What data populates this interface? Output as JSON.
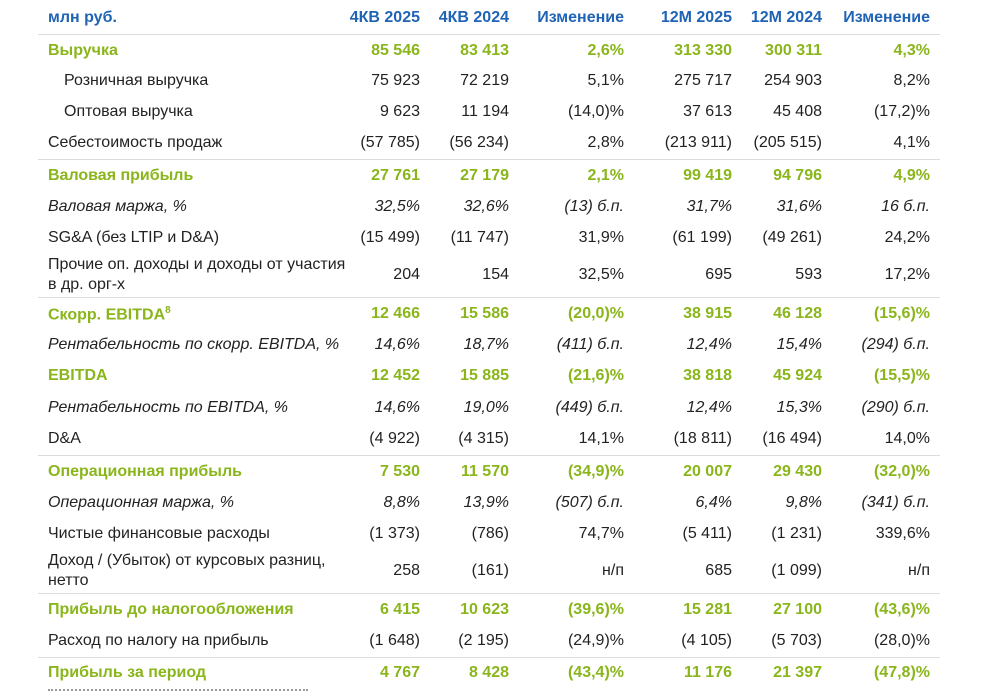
{
  "header": {
    "label": "млн руб.",
    "cols": [
      "4КВ 2025",
      "4КВ 2024",
      "Изменение",
      "12М 2025",
      "12М 2024",
      "Изменение"
    ]
  },
  "rows": [
    {
      "label": "Выручка",
      "v": [
        "85 546",
        "83 413",
        "2,6%",
        "313 330",
        "300 311",
        "4,3%"
      ]
    },
    {
      "label": "Розничная выручка",
      "v": [
        "75 923",
        "72 219",
        "5,1%",
        "275 717",
        "254 903",
        "8,2%"
      ]
    },
    {
      "label": "Оптовая выручка",
      "v": [
        "9 623",
        "11 194",
        "(14,0)%",
        "37 613",
        "45 408",
        "(17,2)%"
      ]
    },
    {
      "label": "Себестоимость продаж",
      "v": [
        "(57 785)",
        "(56 234)",
        "2,8%",
        "(213 911)",
        "(205 515)",
        "4,1%"
      ]
    },
    {
      "label": "Валовая прибыль",
      "v": [
        "27 761",
        "27 179",
        "2,1%",
        "99 419",
        "94 796",
        "4,9%"
      ]
    },
    {
      "label": "Валовая маржа, %",
      "v": [
        "32,5%",
        "32,6%",
        "(13) б.п.",
        "31,7%",
        "31,6%",
        "16 б.п."
      ]
    },
    {
      "label": "SG&A (без LTIP и D&A)",
      "v": [
        "(15 499)",
        "(11 747)",
        "31,9%",
        "(61 199)",
        "(49 261)",
        "24,2%"
      ]
    },
    {
      "label": "Прочие оп. доходы и доходы от участия в др. орг-х",
      "v": [
        "204",
        "154",
        "32,5%",
        "695",
        "593",
        "17,2%"
      ]
    },
    {
      "label": "Скорр. EBITDA",
      "sup": "8",
      "v": [
        "12 466",
        "15 586",
        "(20,0)%",
        "38 915",
        "46 128",
        "(15,6)%"
      ]
    },
    {
      "label": "Рентабельность по скорр. EBITDA, %",
      "v": [
        "14,6%",
        "18,7%",
        "(411) б.п.",
        "12,4%",
        "15,4%",
        "(294) б.п."
      ]
    },
    {
      "label": "EBITDA",
      "v": [
        "12 452",
        "15 885",
        "(21,6)%",
        "38 818",
        "45 924",
        "(15,5)%"
      ]
    },
    {
      "label": "Рентабельность по EBITDA, %",
      "v": [
        "14,6%",
        "19,0%",
        "(449) б.п.",
        "12,4%",
        "15,3%",
        "(290) б.п."
      ]
    },
    {
      "label": "D&A",
      "v": [
        "(4 922)",
        "(4 315)",
        "14,1%",
        "(18 811)",
        "(16 494)",
        "14,0%"
      ]
    },
    {
      "label": "Операционная прибыль",
      "v": [
        "7 530",
        "11 570",
        "(34,9)%",
        "20 007",
        "29 430",
        "(32,0)%"
      ]
    },
    {
      "label": "Операционная маржа, %",
      "v": [
        "8,8%",
        "13,9%",
        "(507) б.п.",
        "6,4%",
        "9,8%",
        "(341) б.п."
      ]
    },
    {
      "label": "Чистые финансовые расходы",
      "v": [
        "(1 373)",
        "(786)",
        "74,7%",
        "(5 411)",
        "(1 231)",
        "339,6%"
      ]
    },
    {
      "label": "Доход / (Убыток) от курсовых разниц, нетто",
      "v": [
        "258",
        "(161)",
        "н/п",
        "685",
        "(1 099)",
        "н/п"
      ]
    },
    {
      "label": "Прибыль до налогообложения",
      "v": [
        "6 415",
        "10 623",
        "(39,6)%",
        "15 281",
        "27 100",
        "(43,6)%"
      ]
    },
    {
      "label": "Расход по налогу на прибыль",
      "v": [
        "(1 648)",
        "(2 195)",
        "(24,9)%",
        "(4 105)",
        "(5 703)",
        "(28,0)%"
      ]
    },
    {
      "label": "Прибыль за период",
      "v": [
        "4 767",
        "8 428",
        "(43,4)%",
        "11 176",
        "21 397",
        "(47,8)%"
      ]
    }
  ]
}
